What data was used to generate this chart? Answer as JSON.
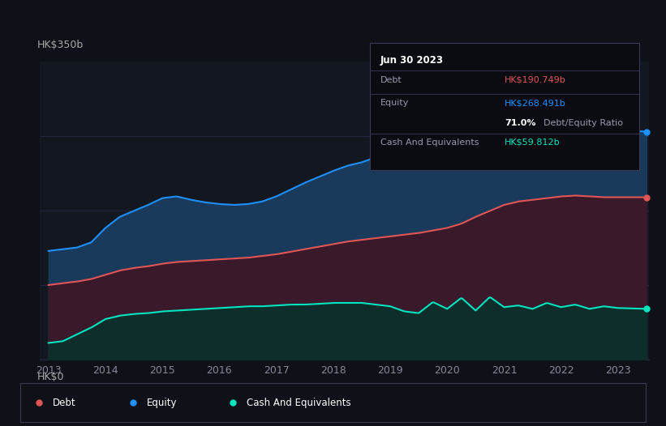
{
  "background_color": "#0e1117",
  "plot_bg_color": "#131720",
  "equity_color": "#1e90ff",
  "debt_color": "#e05555",
  "cash_color": "#00e5c0",
  "equity_fill": "#1a3a5c",
  "debt_fill": "#3a1a2a",
  "cash_fill": "#0d2e2a",
  "ylabel_text": "HK$350b",
  "y0_text": "HK$0",
  "xlabel_ticks": [
    "2013",
    "2014",
    "2015",
    "2016",
    "2017",
    "2018",
    "2019",
    "2020",
    "2021",
    "2022",
    "2023"
  ],
  "ymax": 350,
  "ymin": 0,
  "tooltip_date": "Jun 30 2023",
  "tooltip_debt_label": "Debt",
  "tooltip_debt_val": "HK$190.749b",
  "tooltip_equity_label": "Equity",
  "tooltip_equity_val": "HK$268.491b",
  "tooltip_ratio": "71.0%",
  "tooltip_ratio_label": "Debt/Equity Ratio",
  "tooltip_cash_label": "Cash And Equivalents",
  "tooltip_cash_val": "HK$59.812b",
  "legend_debt": "Debt",
  "legend_equity": "Equity",
  "legend_cash": "Cash And Equivalents"
}
